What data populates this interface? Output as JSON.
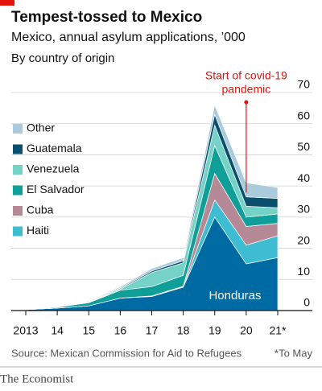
{
  "chart_data": {
    "type": "stacked_area",
    "title": "Tempest-tossed to Mexico",
    "subtitle": "Mexico, annual asylum applications, ’000",
    "subtitle2": "By country of origin",
    "categories": [
      "2013",
      "14",
      "15",
      "16",
      "17",
      "18",
      "19",
      "20",
      "21*"
    ],
    "series": [
      {
        "name": "Honduras",
        "color": "#006ba2",
        "values": [
          0.3,
          0.8,
          1.5,
          4,
          4.5,
          7.5,
          30,
          15,
          17
        ]
      },
      {
        "name": "Haiti",
        "color": "#3ebcd2",
        "values": [
          0,
          0,
          0,
          0,
          0.1,
          0.1,
          5.5,
          6,
          7
        ]
      },
      {
        "name": "Cuba",
        "color": "#b58a96",
        "values": [
          0,
          0,
          0,
          0,
          0.1,
          0.2,
          8.5,
          6,
          4
        ]
      },
      {
        "name": "El Salvador",
        "color": "#109e98",
        "values": [
          0.1,
          0.3,
          1,
          2.5,
          3,
          3.5,
          9,
          3,
          3
        ]
      },
      {
        "name": "Venezuela",
        "color": "#74d3c6",
        "values": [
          0,
          0,
          0.1,
          0.4,
          4.5,
          4,
          6.5,
          3.5,
          2
        ]
      },
      {
        "name": "Guatemala",
        "color": "#0b4f6c",
        "values": [
          0,
          0.1,
          0.2,
          0.3,
          0.5,
          0.7,
          3.5,
          3,
          3
        ]
      },
      {
        "name": "Other",
        "color": "#a9cbdc",
        "values": [
          0.1,
          0.1,
          0.2,
          0.4,
          0.8,
          1,
          3,
          4.5,
          3.5
        ]
      }
    ],
    "ylim": [
      0,
      70
    ],
    "yticks": [
      0,
      10,
      20,
      30,
      40,
      50,
      60,
      70
    ],
    "grid": true,
    "legend": "upper left",
    "annotation": {
      "lines": [
        "Start of covid-19",
        "pandemic"
      ],
      "color": "#e3120b"
    },
    "source": "Source: Mexican Commission for Aid to Refugees",
    "note": "*To May",
    "brand": "The Economist"
  }
}
